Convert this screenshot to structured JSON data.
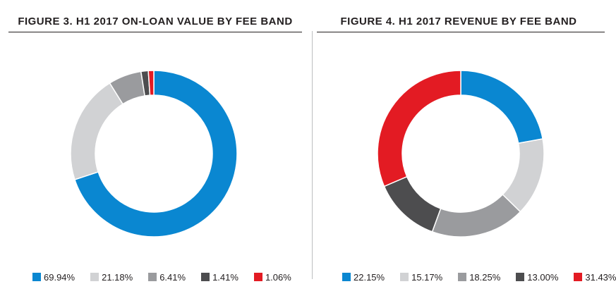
{
  "chart_data": [
    {
      "type": "pie",
      "title": "FIGURE 3. H1 2017 ON-LOAN VALUE BY FEE BAND",
      "series": [
        {
          "label": "69.94%",
          "value": 69.94,
          "color": "#0a87d1"
        },
        {
          "label": "21.18%",
          "value": 21.18,
          "color": "#d1d2d4"
        },
        {
          "label": "6.41%",
          "value": 6.41,
          "color": "#9a9b9e"
        },
        {
          "label": "1.41%",
          "value": 1.41,
          "color": "#4d4d4f"
        },
        {
          "label": "1.06%",
          "value": 1.06,
          "color": "#e31b23"
        }
      ]
    },
    {
      "type": "pie",
      "title": "FIGURE 4. H1 2017 REVENUE BY FEE BAND",
      "series": [
        {
          "label": "22.15%",
          "value": 22.15,
          "color": "#0a87d1"
        },
        {
          "label": "15.17%",
          "value": 15.17,
          "color": "#d1d2d4"
        },
        {
          "label": "18.25%",
          "value": 18.25,
          "color": "#9a9b9e"
        },
        {
          "label": "13.00%",
          "value": 13.0,
          "color": "#4d4d4f"
        },
        {
          "label": "31.43%",
          "value": 31.43,
          "color": "#e31b23"
        }
      ]
    }
  ]
}
